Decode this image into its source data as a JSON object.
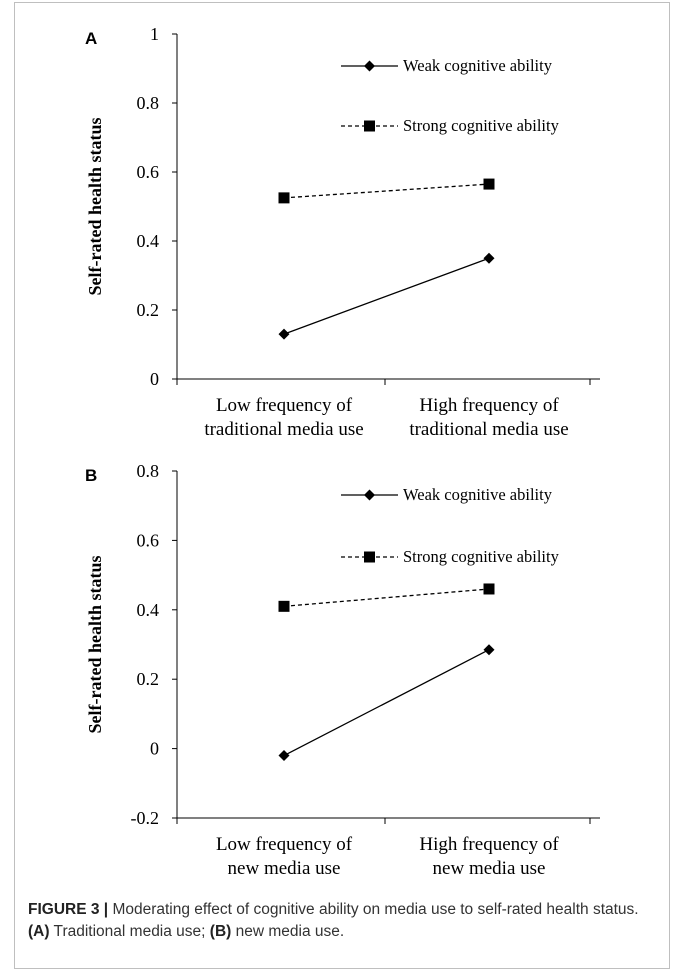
{
  "chart_data": [
    {
      "panel": "A",
      "type": "line",
      "ylabel": "Self-rated health status",
      "ylim": [
        0,
        1
      ],
      "yticks": [
        "0",
        "0.2",
        "0.4",
        "0.6",
        "0.8",
        "1"
      ],
      "tick_values": [
        0,
        0.2,
        0.4,
        0.6,
        0.8,
        1
      ],
      "categories": [
        [
          "Low frequency of",
          "traditional media use"
        ],
        [
          "High frequency of",
          "traditional media use"
        ]
      ],
      "series": [
        {
          "name": "Weak cognitive ability",
          "values": [
            0.13,
            0.35
          ],
          "marker": "diamond",
          "dash": "solid"
        },
        {
          "name": "Strong cognitive ability",
          "values": [
            0.525,
            0.565
          ],
          "marker": "square",
          "dash": "dashed"
        }
      ],
      "legend": "top-right",
      "grid": false
    },
    {
      "panel": "B",
      "type": "line",
      "ylabel": "Self-rated health status",
      "ylim": [
        -0.2,
        0.8
      ],
      "yticks": [
        "-0.2",
        "0",
        "0.2",
        "0.4",
        "0.6",
        "0.8"
      ],
      "tick_values": [
        -0.2,
        0,
        0.2,
        0.4,
        0.6,
        0.8
      ],
      "categories": [
        [
          "Low frequency of",
          "new media use"
        ],
        [
          "High frequency of",
          "new media use"
        ]
      ],
      "series": [
        {
          "name": "Weak cognitive ability",
          "values": [
            -0.02,
            0.285
          ],
          "marker": "diamond",
          "dash": "solid"
        },
        {
          "name": "Strong cognitive ability",
          "values": [
            0.41,
            0.46
          ],
          "marker": "square",
          "dash": "dashed"
        }
      ],
      "legend": "top-right",
      "grid": false
    }
  ],
  "caption": {
    "label": "FIGURE 3 |",
    "text1": " Moderating effect of cognitive ability on media use to self-rated health status. ",
    "a_ref": "(A)",
    "text2": " Traditional media use; ",
    "b_ref": "(B)",
    "text3": " new media use."
  }
}
